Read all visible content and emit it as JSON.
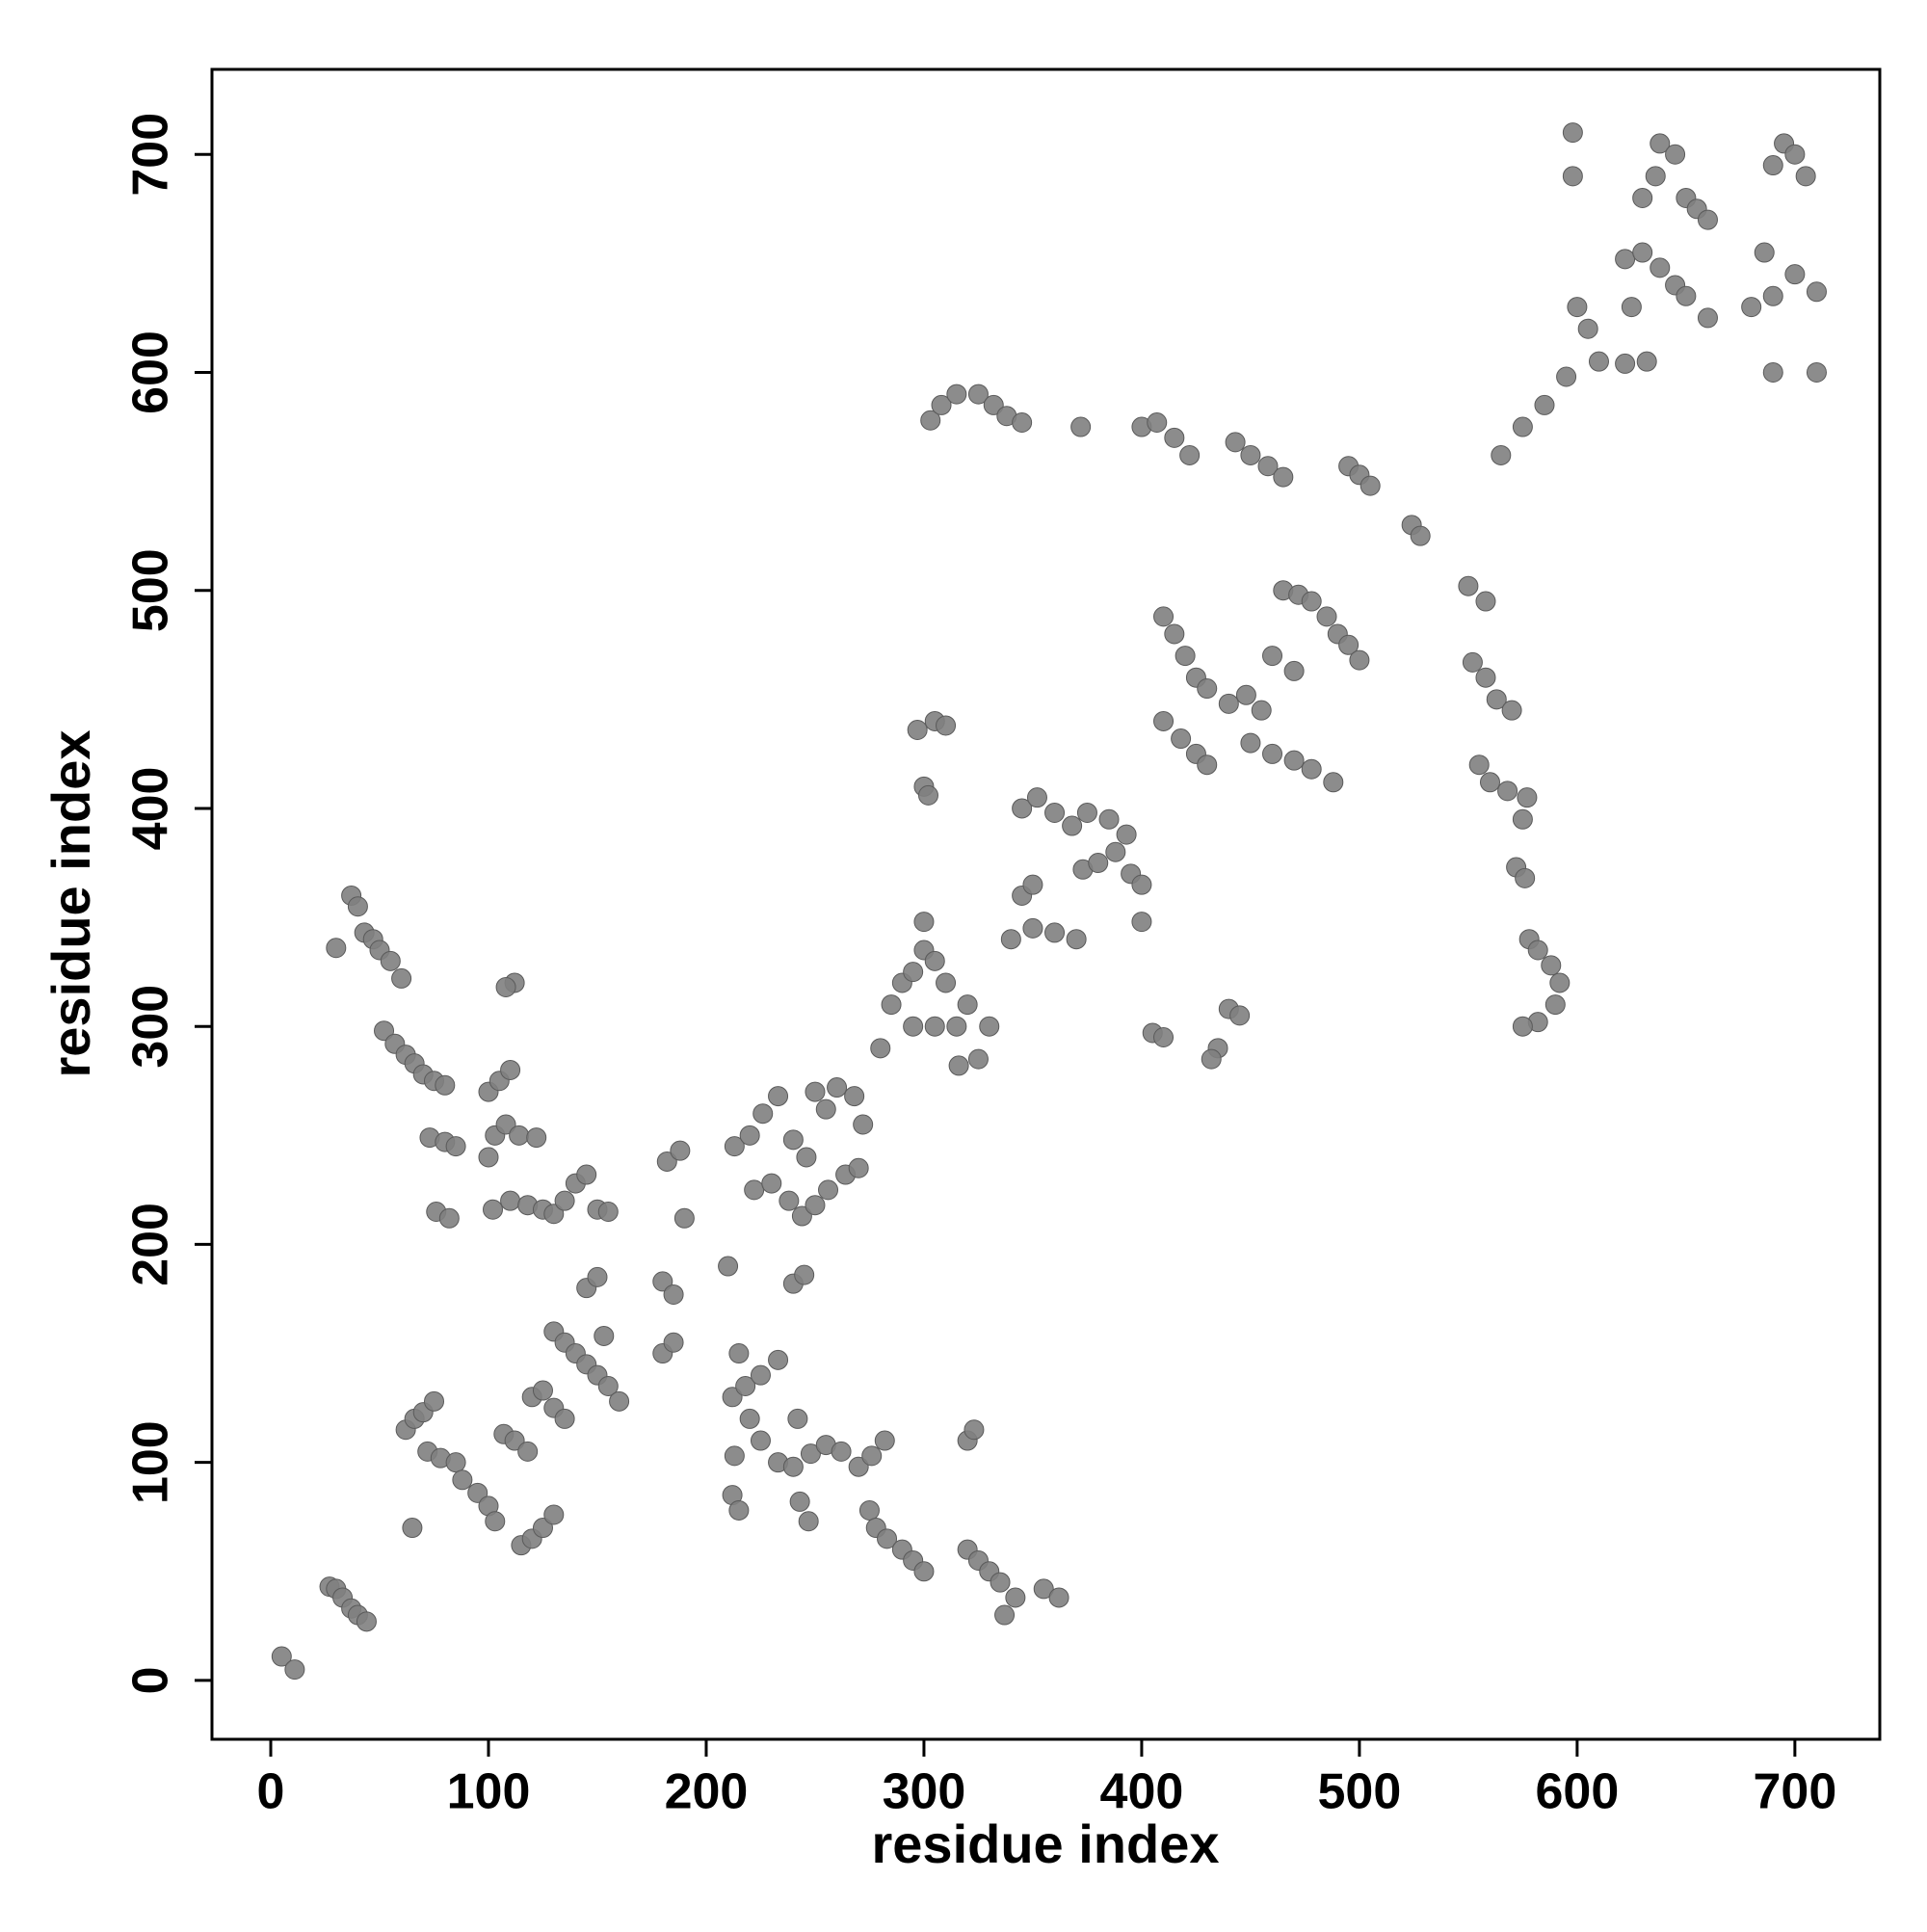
{
  "chart_data": {
    "type": "scatter",
    "x_label": "residue index",
    "y_label": "residue index",
    "xlim": [
      -27,
      739
    ],
    "ylim": [
      -27,
      739
    ],
    "xticks": [
      0,
      100,
      200,
      300,
      400,
      500,
      600,
      700
    ],
    "yticks": [
      0,
      100,
      200,
      300,
      400,
      500,
      600,
      700
    ],
    "color": "#808080",
    "x": [
      5,
      11,
      27,
      30,
      33,
      37,
      40,
      44,
      30,
      37,
      40,
      43,
      47,
      50,
      55,
      60,
      52,
      57,
      62,
      66,
      70,
      75,
      80,
      73,
      80,
      85,
      76,
      82,
      100,
      105,
      110,
      112,
      108,
      100,
      103,
      108,
      114,
      122,
      102,
      110,
      118,
      125,
      130,
      135,
      140,
      145,
      150,
      155,
      145,
      150,
      180,
      185,
      182,
      188,
      190,
      213,
      220,
      226,
      233,
      222,
      230,
      238,
      244,
      250,
      256,
      264,
      270,
      272,
      268,
      260,
      250,
      240,
      246,
      255,
      280,
      285,
      290,
      295,
      300,
      300,
      305,
      310,
      315,
      320,
      325,
      330,
      295,
      305,
      316,
      340,
      350,
      360,
      370,
      345,
      350,
      373,
      380,
      388,
      395,
      400,
      400,
      345,
      352,
      360,
      368,
      375,
      385,
      393,
      300,
      302,
      297,
      305,
      310,
      405,
      410,
      435,
      440,
      445,
      432,
      410,
      415,
      420,
      425,
      430,
      410,
      418,
      425,
      430,
      440,
      448,
      455,
      450,
      460,
      470,
      478,
      488,
      465,
      472,
      478,
      485,
      490,
      495,
      500,
      460,
      470,
      303,
      308,
      315,
      325,
      332,
      338,
      345,
      372,
      400,
      407,
      415,
      422,
      443,
      450,
      458,
      465,
      495,
      500,
      505,
      524,
      528,
      550,
      558,
      552,
      558,
      563,
      570,
      555,
      560,
      568,
      577,
      575,
      572,
      576,
      578,
      582,
      588,
      592,
      590,
      582,
      575,
      565,
      575,
      585,
      595,
      598,
      598,
      600,
      605,
      610,
      622,
      632,
      625,
      622,
      630,
      638,
      645,
      630,
      636,
      638,
      645,
      650,
      655,
      660,
      660,
      650,
      680,
      690,
      686,
      690,
      710,
      695,
      700,
      705,
      690,
      700,
      710,
      62,
      66,
      70,
      75,
      72,
      78,
      85,
      88,
      95,
      100,
      103,
      65,
      107,
      112,
      118,
      120,
      125,
      130,
      135,
      115,
      120,
      125,
      130,
      130,
      135,
      140,
      145,
      150,
      155,
      160,
      153,
      180,
      185,
      210,
      212,
      218,
      225,
      233,
      215,
      220,
      225,
      213,
      212,
      215,
      243,
      247,
      233,
      240,
      248,
      255,
      262,
      270,
      276,
      282,
      275,
      278,
      283,
      290,
      295,
      300,
      320,
      323,
      320,
      325,
      330,
      335,
      337,
      342,
      355,
      362,
      240,
      245,
      242
    ],
    "y": [
      11,
      5,
      43,
      42,
      38,
      33,
      30,
      27,
      336,
      360,
      355,
      343,
      340,
      335,
      330,
      322,
      298,
      292,
      287,
      283,
      278,
      275,
      273,
      249,
      247,
      245,
      215,
      212,
      270,
      275,
      280,
      320,
      318,
      240,
      250,
      255,
      250,
      249,
      216,
      220,
      218,
      216,
      214,
      220,
      228,
      232,
      216,
      215,
      180,
      185,
      183,
      177,
      238,
      243,
      212,
      245,
      250,
      260,
      268,
      225,
      228,
      220,
      213,
      218,
      225,
      232,
      235,
      255,
      268,
      272,
      270,
      248,
      240,
      262,
      290,
      310,
      320,
      325,
      335,
      348,
      330,
      320,
      300,
      310,
      285,
      300,
      300,
      300,
      282,
      340,
      345,
      343,
      340,
      360,
      365,
      372,
      375,
      380,
      370,
      365,
      348,
      400,
      405,
      398,
      392,
      398,
      395,
      388,
      410,
      406,
      436,
      440,
      438,
      297,
      295,
      290,
      308,
      305,
      285,
      488,
      480,
      470,
      460,
      455,
      440,
      432,
      425,
      420,
      448,
      452,
      445,
      430,
      425,
      422,
      418,
      412,
      500,
      498,
      495,
      488,
      480,
      475,
      468,
      470,
      463,
      578,
      585,
      590,
      590,
      585,
      580,
      577,
      575,
      575,
      577,
      570,
      562,
      568,
      562,
      557,
      552,
      557,
      553,
      548,
      530,
      525,
      502,
      495,
      467,
      460,
      450,
      445,
      420,
      412,
      408,
      405,
      395,
      373,
      368,
      340,
      335,
      328,
      320,
      310,
      302,
      300,
      562,
      575,
      585,
      598,
      710,
      690,
      630,
      620,
      605,
      604,
      605,
      630,
      652,
      655,
      648,
      640,
      680,
      690,
      705,
      700,
      680,
      675,
      670,
      625,
      635,
      630,
      635,
      655,
      600,
      600,
      705,
      700,
      690,
      695,
      645,
      637,
      115,
      120,
      123,
      128,
      105,
      102,
      100,
      92,
      86,
      80,
      73,
      70,
      113,
      110,
      105,
      130,
      133,
      125,
      120,
      62,
      65,
      70,
      76,
      160,
      155,
      150,
      145,
      140,
      135,
      128,
      158,
      150,
      155,
      190,
      130,
      135,
      140,
      147,
      150,
      120,
      110,
      103,
      85,
      78,
      82,
      73,
      100,
      98,
      104,
      108,
      105,
      98,
      103,
      110,
      78,
      70,
      65,
      60,
      55,
      50,
      110,
      115,
      60,
      55,
      50,
      45,
      30,
      38,
      42,
      38,
      182,
      186,
      120
    ]
  }
}
